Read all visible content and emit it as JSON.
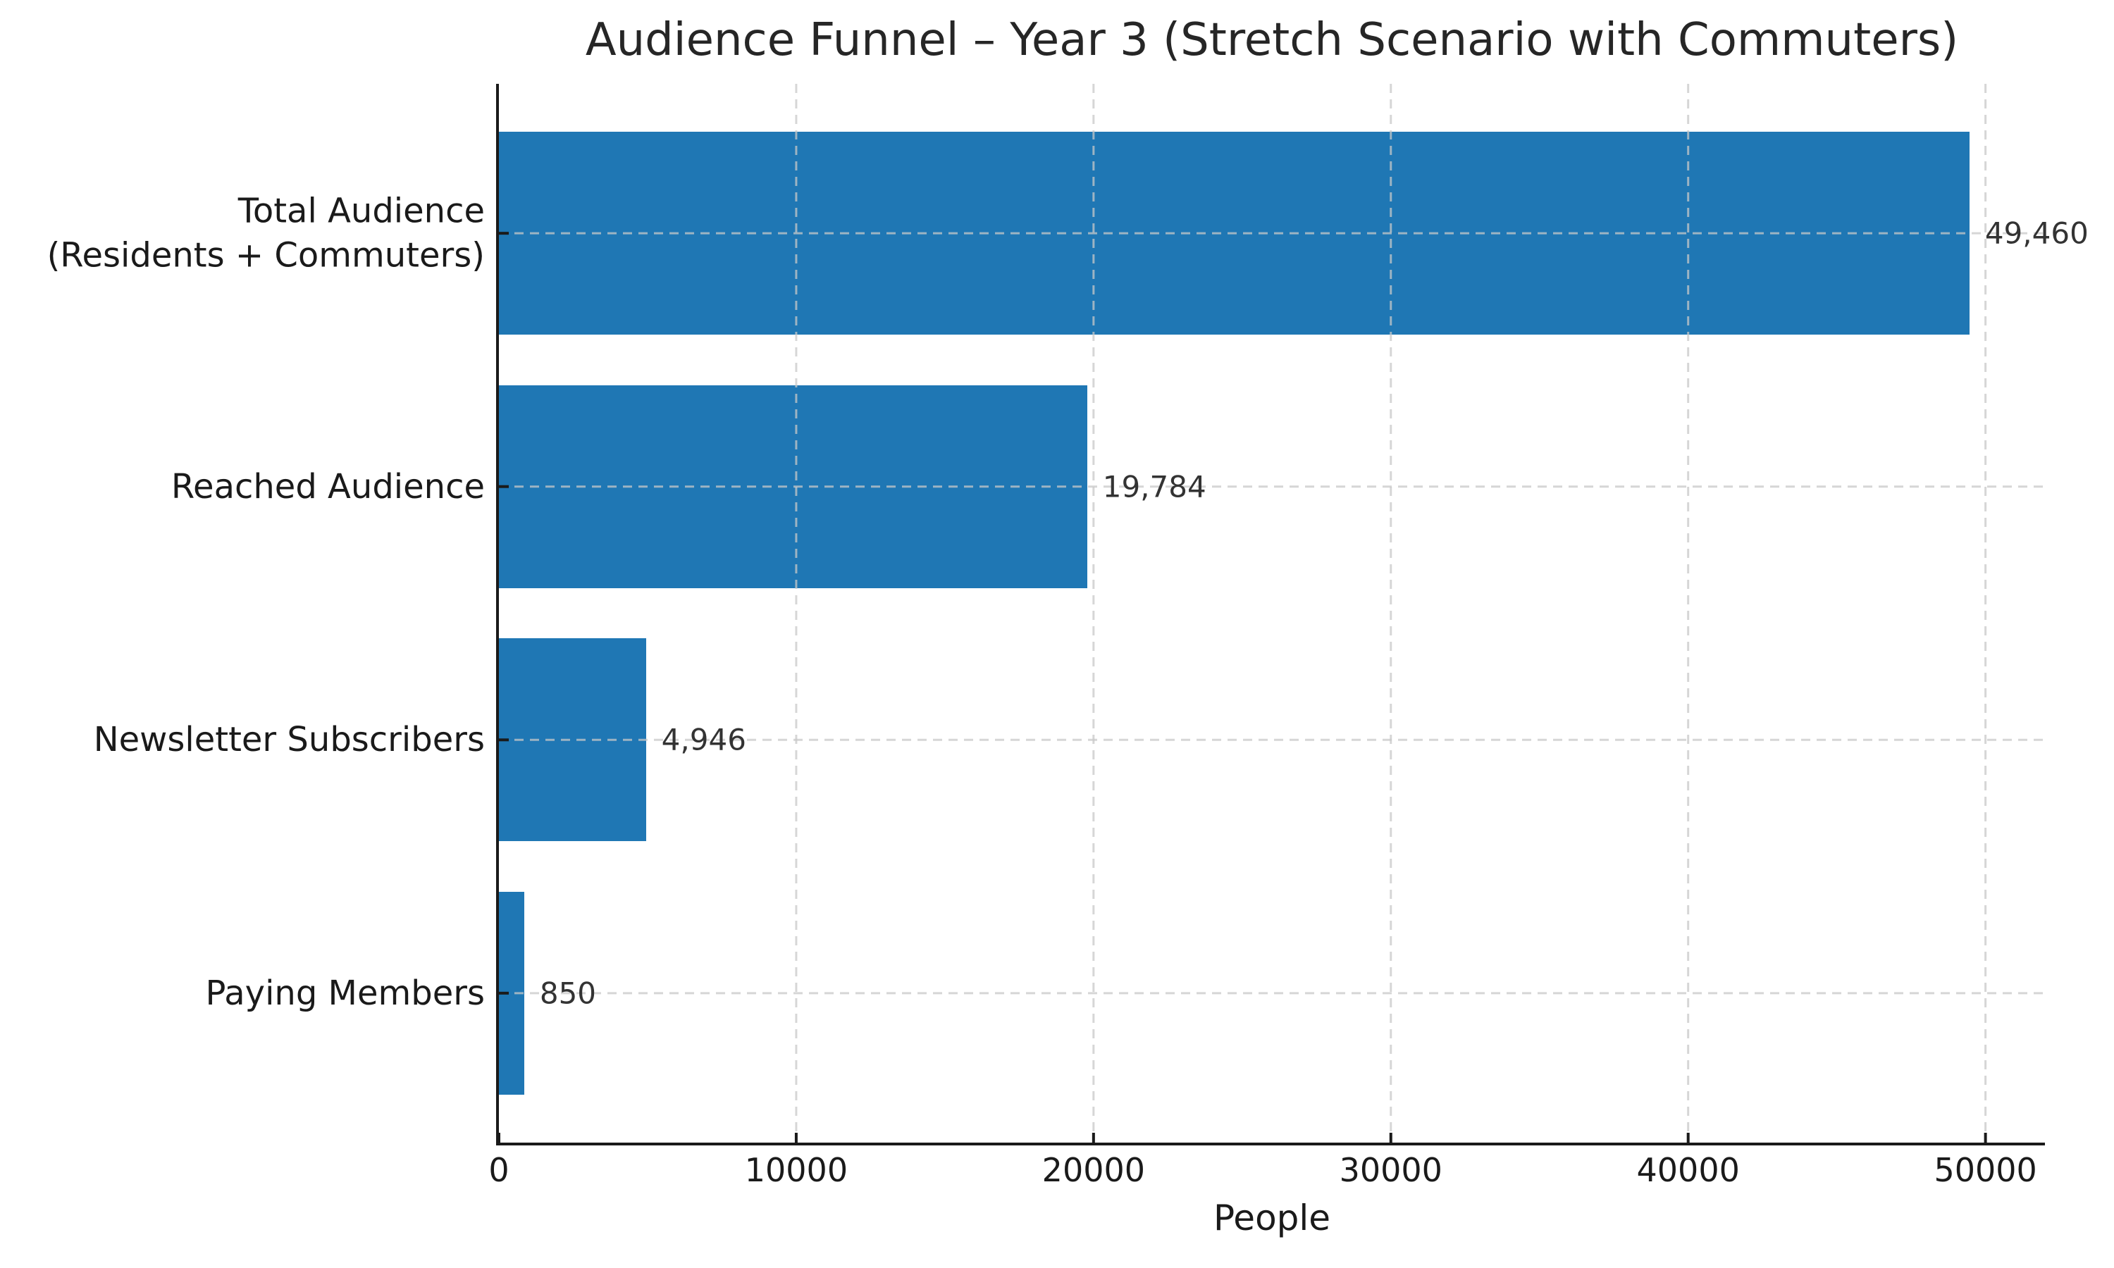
{
  "chart_data": {
    "type": "bar",
    "orientation": "horizontal",
    "title": "Audience Funnel – Year 3 (Stretch Scenario with Commuters)",
    "xlabel": "People",
    "ylabel": "",
    "categories": [
      "Total Audience\n(Residents + Commuters)",
      "Reached Audience",
      "Newsletter Subscribers",
      "Paying Members"
    ],
    "values": [
      49460,
      19784,
      4946,
      850
    ],
    "value_labels": [
      "49,460",
      "19,784",
      "4,946",
      "850"
    ],
    "xticks": [
      0,
      10000,
      20000,
      30000,
      40000,
      50000
    ],
    "xtick_labels": [
      "0",
      "10000",
      "20000",
      "30000",
      "40000",
      "50000"
    ],
    "xlim": [
      0,
      52000
    ],
    "grid": {
      "axis": "both",
      "line_style": "dashed",
      "drawn_above_bars": true
    },
    "legend": null,
    "colors": {
      "bar": "#1f77b4",
      "grid": "rgba(200,200,200,0.75)",
      "spine": "#1a1a1a",
      "text": "#1a1a1a",
      "value_text": "#333333"
    }
  }
}
